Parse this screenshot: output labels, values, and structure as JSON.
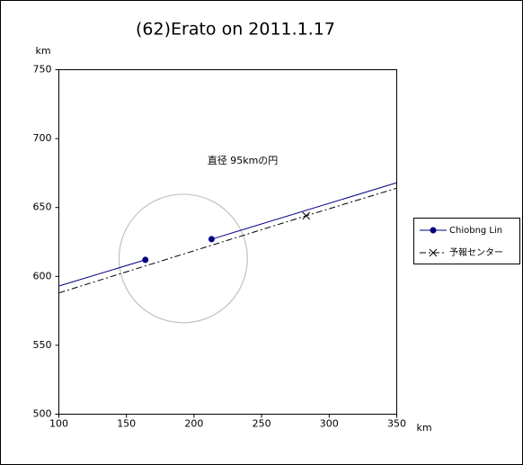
{
  "chart_data": {
    "type": "line",
    "title": "(62)Erato on 2011.1.17",
    "x_label": "km",
    "y_label": "km",
    "xlim": [
      100,
      350
    ],
    "xticks": [
      100,
      150,
      200,
      250,
      300,
      350
    ],
    "ylim": [
      500,
      750
    ],
    "yticks": [
      500,
      550,
      600,
      650,
      700,
      750
    ],
    "grid": false,
    "legend": "right",
    "series": [
      {
        "name": "Chiobng Lin",
        "color": "#000080",
        "dash": "solid",
        "marker": "circle",
        "x": [
          100,
          164,
          null,
          213,
          350
        ],
        "values": [
          593,
          612,
          null,
          627,
          668
        ],
        "markers": [
          false,
          true,
          false,
          true,
          false
        ]
      },
      {
        "name": "予報センター",
        "color": "#000000",
        "dash": "dash-dot",
        "marker": "x",
        "x": [
          100,
          283,
          350
        ],
        "values": [
          588,
          644,
          664
        ],
        "markers": [
          false,
          true,
          false
        ]
      }
    ],
    "circle": {
      "cx": 192,
      "cy": 613,
      "diameter": 95,
      "color": "#c0c0c0"
    },
    "annotation": "直径 95kmの円"
  }
}
